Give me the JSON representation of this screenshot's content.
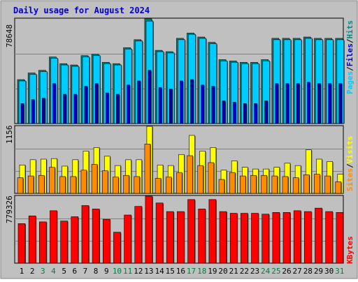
{
  "title": "Daily usage for August 2024",
  "colors": {
    "background": "#c0c0c0",
    "plot_bg": "#c0c0c0",
    "title": "#0000cc",
    "hits": "#008b8b",
    "files": "#00ccff",
    "pages": "#0000cc",
    "visits": "#ffff00",
    "sites": "#ff8c00",
    "kbytes": "#ff0000",
    "weekend_label": "#007f3f",
    "weekday_label": "#000000"
  },
  "legend": {
    "top": {
      "hits": "Hits",
      "sep1": "/",
      "files": "Files",
      "sep2": "/",
      "pages": "Pages"
    },
    "middle": {
      "visits": "Visits",
      "sep": "/",
      "sites": "Sites"
    },
    "bottom": {
      "kbytes": "KBytes"
    }
  },
  "chart_data": [
    {
      "type": "bar",
      "panel": "hits-files-pages",
      "y_axis_label": "78648",
      "ylim": [
        0,
        78648
      ],
      "categories": [
        "1",
        "2",
        "3",
        "4",
        "5",
        "6",
        "7",
        "8",
        "9",
        "10",
        "11",
        "12",
        "13",
        "14",
        "15",
        "16",
        "17",
        "18",
        "19",
        "20",
        "21",
        "22",
        "23",
        "24",
        "25",
        "26",
        "27",
        "28",
        "29",
        "30",
        "31"
      ],
      "weekend_days": [
        "3",
        "4",
        "10",
        "11",
        "17",
        "18",
        "24",
        "25",
        "31"
      ],
      "series": [
        {
          "name": "Hits",
          "values": [
            33000,
            38000,
            40000,
            50000,
            45000,
            44000,
            51000,
            52000,
            46000,
            45000,
            57000,
            63000,
            78648,
            55000,
            54000,
            64000,
            68000,
            65000,
            61000,
            48000,
            47000,
            46000,
            46000,
            48000,
            64000,
            64000,
            64000,
            65000,
            64000,
            64000,
            64000
          ]
        },
        {
          "name": "Files",
          "values": [
            32000,
            37000,
            39000,
            49000,
            44000,
            43000,
            50000,
            51000,
            45000,
            44000,
            56000,
            62000,
            77000,
            54000,
            53000,
            63000,
            67000,
            64000,
            60000,
            47000,
            46000,
            45000,
            45000,
            47000,
            63000,
            63000,
            63000,
            64000,
            63000,
            63000,
            63000
          ]
        },
        {
          "name": "Pages",
          "values": [
            15000,
            18000,
            19000,
            30000,
            22000,
            22000,
            28000,
            30000,
            23000,
            22000,
            29000,
            32000,
            40000,
            27000,
            26000,
            32000,
            33000,
            29000,
            28000,
            17000,
            16000,
            15000,
            15000,
            17000,
            30000,
            30000,
            30000,
            31000,
            30000,
            30000,
            30000
          ]
        }
      ]
    },
    {
      "type": "bar",
      "panel": "visits-sites",
      "y_axis_label": "1156",
      "ylim": [
        0,
        1156
      ],
      "categories": [
        "1",
        "2",
        "3",
        "4",
        "5",
        "6",
        "7",
        "8",
        "9",
        "10",
        "11",
        "12",
        "13",
        "14",
        "15",
        "16",
        "17",
        "18",
        "19",
        "20",
        "21",
        "22",
        "23",
        "24",
        "25",
        "26",
        "27",
        "28",
        "29",
        "30",
        "31"
      ],
      "series": [
        {
          "name": "Visits",
          "values": [
            490,
            580,
            590,
            600,
            470,
            580,
            730,
            790,
            640,
            480,
            580,
            580,
            1156,
            490,
            480,
            670,
            1000,
            730,
            790,
            400,
            560,
            450,
            420,
            420,
            450,
            520,
            480,
            750,
            590,
            550,
            330
          ]
        },
        {
          "name": "Sites",
          "values": [
            270,
            300,
            310,
            450,
            290,
            290,
            400,
            500,
            390,
            280,
            310,
            290,
            850,
            260,
            280,
            360,
            650,
            480,
            530,
            240,
            360,
            300,
            310,
            310,
            300,
            290,
            270,
            320,
            330,
            300,
            200
          ]
        }
      ]
    },
    {
      "type": "bar",
      "panel": "kbytes",
      "y_axis_label": "779326",
      "ylim": [
        0,
        779326
      ],
      "categories": [
        "1",
        "2",
        "3",
        "4",
        "5",
        "6",
        "7",
        "8",
        "9",
        "10",
        "11",
        "12",
        "13",
        "14",
        "15",
        "16",
        "17",
        "18",
        "19",
        "20",
        "21",
        "22",
        "23",
        "24",
        "25",
        "26",
        "27",
        "28",
        "29",
        "30",
        "31"
      ],
      "series": [
        {
          "name": "KBytes",
          "values": [
            460000,
            550000,
            480000,
            610000,
            490000,
            540000,
            670000,
            630000,
            510000,
            360000,
            560000,
            660000,
            779326,
            700000,
            600000,
            600000,
            740000,
            630000,
            740000,
            600000,
            580000,
            580000,
            580000,
            570000,
            590000,
            590000,
            610000,
            600000,
            640000,
            600000,
            590000
          ]
        }
      ]
    }
  ]
}
